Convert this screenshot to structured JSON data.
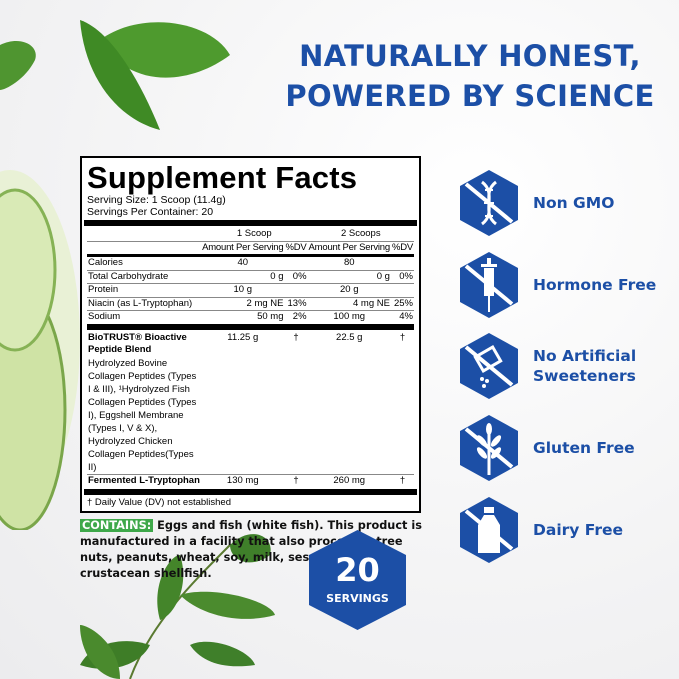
{
  "headline": [
    "NATURALLY HONEST,",
    "POWERED BY SCIENCE"
  ],
  "colors": {
    "brand_blue": "#1c4fa6",
    "contains_green": "#3ea84a"
  },
  "supplement_facts": {
    "title": "Supplement Facts",
    "serving_size": "Serving Size: 1 Scoop (11.4g)",
    "servings_per_container": "Servings Per Container: 20",
    "col_groups": [
      "1 Scoop",
      "2 Scoops"
    ],
    "col_headers": [
      "Amount Per Serving",
      "%DV",
      "Amount Per Serving",
      "%DV"
    ],
    "rows": [
      {
        "name": "Calories",
        "a1": "40",
        "d1": "",
        "a2": "80",
        "d2": ""
      },
      {
        "name": "Total Carbohydrate",
        "a1": "0 g",
        "d1": "0%",
        "a2": "0 g",
        "d2": "0%"
      },
      {
        "name": "Protein",
        "a1": "10 g",
        "d1": "",
        "a2": "20 g",
        "d2": ""
      },
      {
        "name": "Niacin (as L-Tryptophan)",
        "a1": "2 mg NE",
        "d1": "13%",
        "a2": "4 mg NE",
        "d2": "25%"
      },
      {
        "name": "Sodium",
        "a1": "50 mg",
        "d1": "2%",
        "a2": "100 mg",
        "d2": "4%"
      }
    ],
    "blend": {
      "name": "BioTRUST® Bioactive Peptide Blend",
      "desc": "Hydrolyzed Bovine Collagen Peptides (Types I & III), ¹Hydrolyzed Fish Collagen Peptides (Types I), Eggshell Membrane (Types I, V & X), Hydrolyzed Chicken Collagen Peptides(Types II)",
      "a1": "11.25 g",
      "d1": "†",
      "a2": "22.5 g",
      "d2": "†"
    },
    "tryptophan": {
      "name": "Fermented L-Tryptophan",
      "a1": "130 mg",
      "d1": "†",
      "a2": "260 mg",
      "d2": "†"
    },
    "footnote": "† Daily Value (DV) not established"
  },
  "contains": {
    "label": "CONTAINS:",
    "text": "Eggs and fish (white fish). This product is manufactured in a facility that also processes tree nuts, peanuts, wheat, soy, milk, sesame and crustacean shellfish."
  },
  "features": [
    {
      "label": "Non GMO",
      "icon": "dna-crossed-icon"
    },
    {
      "label": "Hormone Free",
      "icon": "syringe-crossed-icon"
    },
    {
      "label": "No Artificial Sweeteners",
      "icon": "sweetener-crossed-icon"
    },
    {
      "label": "Gluten Free",
      "icon": "wheat-crossed-icon"
    },
    {
      "label": "Dairy Free",
      "icon": "milk-bottle-crossed-icon"
    }
  ],
  "badge": {
    "number": "20",
    "label": "SERVINGS"
  }
}
